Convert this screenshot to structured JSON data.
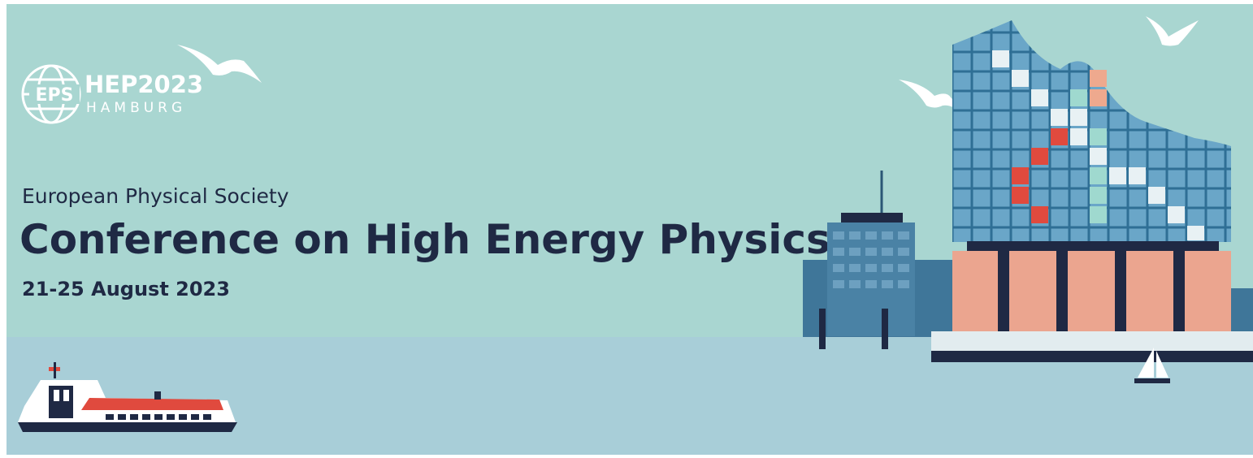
{
  "logo": {
    "mark": "EPS",
    "name": "HEP2023",
    "city": "HAMBURG"
  },
  "header": {
    "society": "European Physical Society",
    "title": "Conference on High Energy Physics",
    "dates": "21-25 August 2023"
  }
}
